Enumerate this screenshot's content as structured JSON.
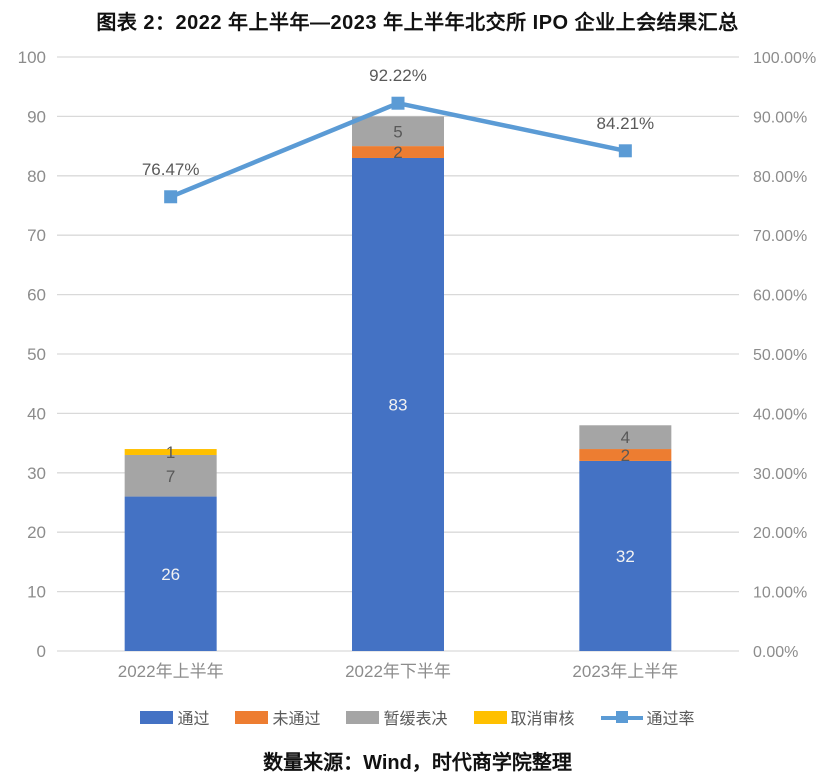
{
  "title": "图表 2：2022 年上半年—2023 年上半年北交所 IPO 企业上会结果汇总",
  "source": "数量来源：Wind，时代商学院整理",
  "chart_data": {
    "type": "bar",
    "subtype": "stacked-column-with-line",
    "title": "图表 2：2022 年上半年—2023 年上半年北交所 IPO 企业上会结果汇总",
    "categories": [
      "2022年上半年",
      "2022年下半年",
      "2023年上半年"
    ],
    "series": [
      {
        "name": "通过",
        "type": "bar",
        "color": "#4472C4",
        "values": [
          26,
          83,
          32
        ],
        "label_color": "#F2F2F2"
      },
      {
        "name": "未通过",
        "type": "bar",
        "color": "#ED7D31",
        "values": [
          0,
          2,
          2
        ],
        "label_color": "#595959"
      },
      {
        "name": "暂缓表决",
        "type": "bar",
        "color": "#A5A5A5",
        "values": [
          7,
          5,
          4
        ],
        "label_color": "#595959"
      },
      {
        "name": "取消审核",
        "type": "bar",
        "color": "#FFC000",
        "values": [
          1,
          0,
          0
        ],
        "label_color": "#595959"
      },
      {
        "name": "通过率",
        "type": "line",
        "color": "#5B9BD5",
        "values": [
          76.47,
          92.22,
          84.21
        ],
        "labels": [
          "76.47%",
          "92.22%",
          "84.21%"
        ],
        "label_color": "#595959",
        "axis": "right"
      }
    ],
    "left_axis": {
      "min": 0,
      "max": 100,
      "step": 10,
      "ticks": [
        "0",
        "10",
        "20",
        "30",
        "40",
        "50",
        "60",
        "70",
        "80",
        "90",
        "100"
      ]
    },
    "right_axis": {
      "min": 0,
      "max": 100,
      "step": 10,
      "ticks": [
        "0.00%",
        "10.00%",
        "20.00%",
        "30.00%",
        "40.00%",
        "50.00%",
        "60.00%",
        "70.00%",
        "80.00%",
        "90.00%",
        "100.00%"
      ]
    },
    "grid": true,
    "legend_position": "bottom",
    "style": {
      "grid_color": "#D9D9D9",
      "axis_text_color": "#8C8C8C",
      "data_label_color": "#595959"
    }
  }
}
